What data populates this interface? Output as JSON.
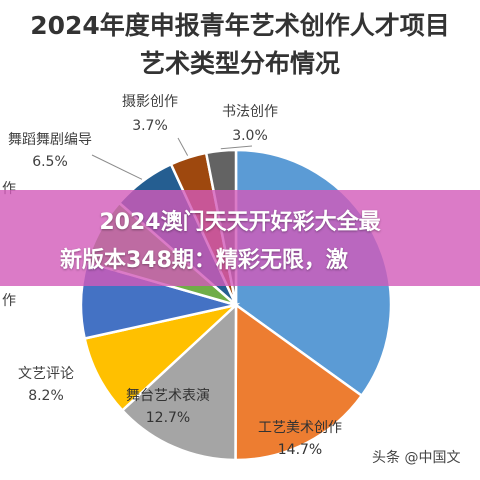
{
  "chart_data": {
    "type": "pie",
    "title": "2024年度申报青年艺术创作人才项目",
    "subtitle": "艺术类型分布情况",
    "slices": [
      {
        "label": "",
        "value": 34.0,
        "value_label": "",
        "color": "#5b9bd5"
      },
      {
        "label": "工艺美术创作",
        "value": 14.7,
        "value_label": "14.7%",
        "color": "#ed7d31"
      },
      {
        "label": "舞台艺术表演",
        "value": 12.7,
        "value_label": "12.7%",
        "color": "#a5a5a5"
      },
      {
        "label": "文艺评论",
        "value": 8.2,
        "value_label": "8.2%",
        "color": "#ffc000"
      },
      {
        "label": "",
        "value": 7.7,
        "value_label": "",
        "color": "#4472c4"
      },
      {
        "label": "",
        "value": 6.8,
        "value_label": "",
        "color": "#70ad47"
      },
      {
        "label": "舞蹈舞剧编导",
        "value": 6.5,
        "value_label": "6.5%",
        "color": "#255e91"
      },
      {
        "label": "摄影创作",
        "value": 3.7,
        "value_label": "3.7%",
        "color": "#9e480e"
      },
      {
        "label": "书法创作",
        "value": 3.0,
        "value_label": "3.0%",
        "color": "#636363"
      }
    ],
    "partial_labels": [
      "作",
      "作"
    ]
  },
  "overlay": {
    "line1": "2024澳门天天开好彩大全最",
    "line2": "新版本348期：精彩无限，激"
  },
  "watermark": {
    "text": "头条 @中国文",
    "icon": "at-icon"
  }
}
